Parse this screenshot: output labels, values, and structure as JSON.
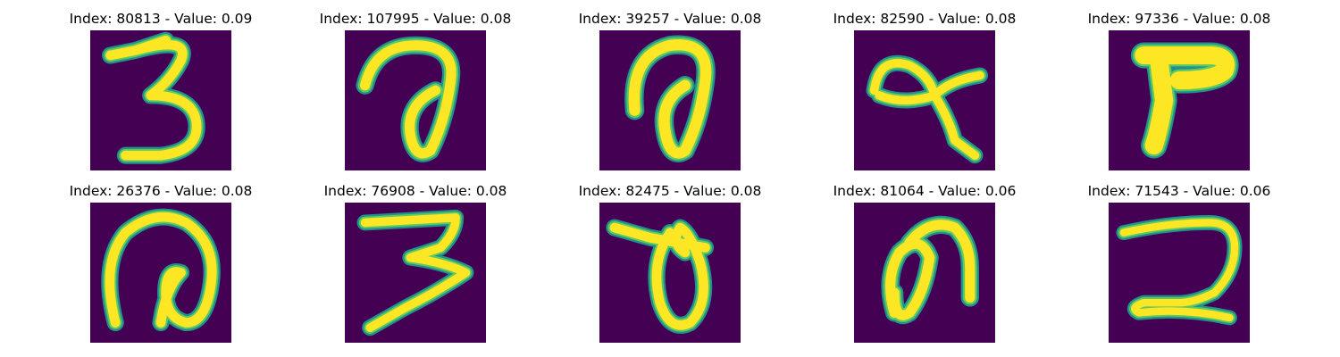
{
  "figure": {
    "panels": [
      {
        "title": "Index: 80813 - Value: 0.09",
        "digit_shape": "three-icon"
      },
      {
        "title": "Index: 107995 - Value: 0.08",
        "digit_shape": "loop-icon"
      },
      {
        "title": "Index: 39257 - Value: 0.08",
        "digit_shape": "loop-icon"
      },
      {
        "title": "Index: 82590 - Value: 0.08",
        "digit_shape": "alpha-icon"
      },
      {
        "title": "Index: 97336 - Value: 0.08",
        "digit_shape": "seven-icon"
      },
      {
        "title": "Index: 26376 - Value: 0.08",
        "digit_shape": "loop-icon"
      },
      {
        "title": "Index: 76908 - Value: 0.08",
        "digit_shape": "three-icon"
      },
      {
        "title": "Index: 82475 - Value: 0.08",
        "digit_shape": "loop-icon"
      },
      {
        "title": "Index: 81064 - Value: 0.06",
        "digit_shape": "loop-icon"
      },
      {
        "title": "Index: 71543 - Value: 0.06",
        "digit_shape": "two-icon"
      }
    ],
    "colors": {
      "background": "#440154",
      "stroke_edge": "#21918c",
      "stroke_mid": "#5ec962",
      "stroke_core": "#fde725"
    }
  }
}
